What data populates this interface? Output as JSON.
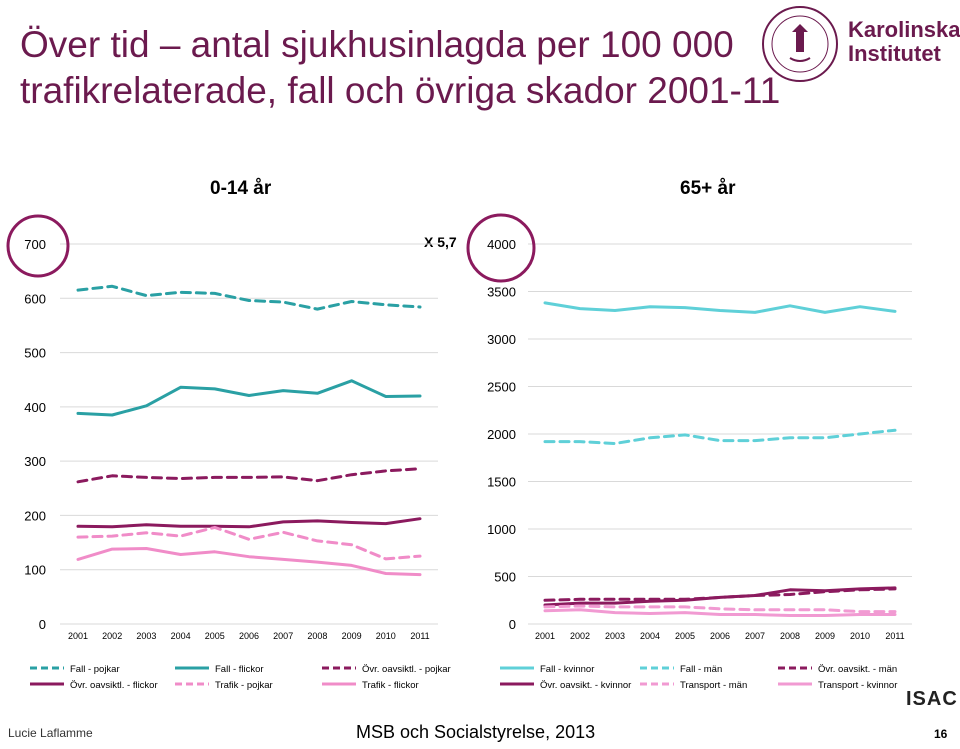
{
  "title_line1": "Över tid – antal sjukhusinlagda per 100 000",
  "title_line2": "trafikrelaterade, fall och övriga skador 2001-11",
  "logo_text_line1": "Karolinska",
  "logo_text_line2": "Institutet",
  "logo_seal_text": "KAROLINSKA INSTITUTET ANNO 1810",
  "multiplier_label": "X 5,7",
  "isac_logo": "ISAC",
  "footer": {
    "author": "Lucie Laflamme",
    "source": "MSB och Socialstyrelse, 2013",
    "page": "16"
  },
  "colors": {
    "title": "#6b1a4e",
    "fall": "#2aa0a4",
    "fall_light": "#5fd0d8",
    "ovr": "#8b1a5e",
    "trafik": "#f08cc8",
    "trafik_light": "#f19ad2",
    "circle": "#8b1a5e"
  },
  "chart_data": [
    {
      "type": "line",
      "title": "0-14 år",
      "x": [
        "2001",
        "2002",
        "2003",
        "2004",
        "2005",
        "2006",
        "2007",
        "2008",
        "2009",
        "2010",
        "2011"
      ],
      "ylim": [
        0,
        700
      ],
      "yticks": [
        0,
        100,
        200,
        300,
        400,
        500,
        600,
        700
      ],
      "grid": true,
      "legend": "bottom",
      "series": [
        {
          "name": "Fall - pojkar",
          "style": "dashed",
          "color": "#2aa0a4",
          "values": [
            615,
            622,
            605,
            611,
            609,
            596,
            593,
            580,
            594,
            588,
            584
          ]
        },
        {
          "name": "Fall - flickor",
          "style": "solid",
          "color": "#2aa0a4",
          "values": [
            388,
            385,
            402,
            436,
            433,
            421,
            430,
            425,
            448,
            419,
            420
          ]
        },
        {
          "name": "Övr. oavsiktl. - pojkar",
          "style": "dashed",
          "color": "#8b1a5e",
          "values": [
            262,
            273,
            270,
            268,
            270,
            270,
            271,
            264,
            275,
            282,
            286
          ]
        },
        {
          "name": "Övr. oavsiktl. - flickor",
          "style": "solid",
          "color": "#8b1a5e",
          "values": [
            180,
            179,
            183,
            180,
            180,
            179,
            188,
            190,
            187,
            185,
            194
          ]
        },
        {
          "name": "Trafik - pojkar",
          "style": "dashed",
          "color": "#f08cc8",
          "values": [
            160,
            162,
            168,
            162,
            178,
            156,
            169,
            153,
            146,
            120,
            125
          ]
        },
        {
          "name": "Trafik - flickor",
          "style": "solid",
          "color": "#f08cc8",
          "values": [
            119,
            138,
            139,
            128,
            133,
            124,
            119,
            114,
            108,
            93,
            91
          ]
        }
      ]
    },
    {
      "type": "line",
      "title": "65+ år",
      "x": [
        "2001",
        "2002",
        "2003",
        "2004",
        "2005",
        "2006",
        "2007",
        "2008",
        "2009",
        "2010",
        "2011"
      ],
      "ylim": [
        0,
        4000
      ],
      "yticks": [
        0,
        500,
        1000,
        1500,
        2000,
        2500,
        3000,
        3500,
        4000
      ],
      "grid": true,
      "legend": "bottom",
      "series": [
        {
          "name": "Fall - kvinnor",
          "style": "solid",
          "color": "#5fd0d8",
          "values": [
            3380,
            3320,
            3300,
            3340,
            3330,
            3300,
            3280,
            3350,
            3280,
            3340,
            3290
          ]
        },
        {
          "name": "Fall - män",
          "style": "dashed",
          "color": "#5fd0d8",
          "values": [
            1920,
            1920,
            1900,
            1960,
            1990,
            1930,
            1930,
            1960,
            1960,
            2000,
            2040
          ]
        },
        {
          "name": "Övr. oavsikt. - män",
          "style": "dashed",
          "color": "#8b1a5e",
          "values": [
            250,
            260,
            260,
            260,
            260,
            280,
            300,
            310,
            340,
            360,
            370
          ]
        },
        {
          "name": "Övr. oavsikt. - kvinnor",
          "style": "solid",
          "color": "#8b1a5e",
          "values": [
            200,
            220,
            220,
            240,
            250,
            280,
            300,
            360,
            350,
            370,
            380
          ]
        },
        {
          "name": "Transport - män",
          "style": "dashed",
          "color": "#f19ad2",
          "values": [
            180,
            190,
            180,
            180,
            180,
            160,
            150,
            150,
            150,
            130,
            130
          ]
        },
        {
          "name": "Transport - kvinnor",
          "style": "solid",
          "color": "#f19ad2",
          "values": [
            140,
            150,
            120,
            110,
            120,
            100,
            100,
            90,
            90,
            100,
            100
          ]
        }
      ]
    }
  ]
}
